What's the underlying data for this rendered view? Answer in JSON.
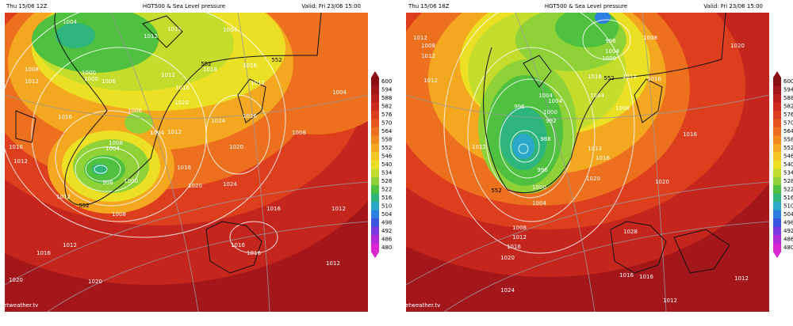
{
  "panels": [
    {
      "header": {
        "left": "Thu 15/06 12Z",
        "center": "HGT500 & Sea Level pressure",
        "right": "Valid: Fri 23/06 15:00"
      },
      "watermark": "© www.netweather.tv",
      "isobar_labels": [
        "1004",
        "1004",
        "1012",
        "1012",
        "1000",
        "1000",
        "1006",
        "1008",
        "1012",
        "1012",
        "1016",
        "1016",
        "1012",
        "1004",
        "1016",
        "1020",
        "1006",
        "1004",
        "1012",
        "1016",
        "1024",
        "1016",
        "1008",
        "1004",
        "1020",
        "1008",
        "1016",
        "1012",
        "998",
        "1000",
        "1016",
        "1020",
        "1024",
        "1012",
        "1008",
        "1016",
        "1012",
        "1016",
        "1012",
        "1016",
        "1020",
        "1020",
        "1012",
        "1016"
      ],
      "contour_labels": [
        "552",
        "552",
        "552"
      ]
    },
    {
      "header": {
        "left": "Thu 15/06 18Z",
        "center": "HGT500 & Sea Level pressure",
        "right": "Valid: Fri 23/06 15:00"
      },
      "watermark": "© www.netweather.tv",
      "isobar_labels": [
        "1008",
        "996",
        "1004",
        "1000",
        "1012",
        "1008",
        "1012",
        "1020",
        "1012",
        "1004",
        "1004",
        "1000",
        "996",
        "992",
        "988",
        "1004",
        "1008",
        "1012",
        "1016",
        "1016",
        "1012",
        "996",
        "1000",
        "1004",
        "1012",
        "1016",
        "1020",
        "1016",
        "1008",
        "1012",
        "1016",
        "1020",
        "1024",
        "1028",
        "1016",
        "1016",
        "1012",
        "1012",
        "1020"
      ],
      "contour_labels": [
        "552",
        "552"
      ]
    }
  ],
  "colorbar": {
    "ticks": [
      600,
      594,
      588,
      582,
      576,
      570,
      564,
      558,
      552,
      546,
      540,
      534,
      528,
      522,
      516,
      510,
      504,
      498,
      492,
      486,
      480
    ],
    "colors": [
      "#8a0f12",
      "#a3161a",
      "#b81e1c",
      "#cc2a1e",
      "#dd3e1d",
      "#e6561c",
      "#ec701d",
      "#f08a1d",
      "#f4a81f",
      "#f4c621",
      "#ece024",
      "#c4dd2c",
      "#8fd237",
      "#4fc03f",
      "#2eb57c",
      "#2aa8c8",
      "#2a7fe0",
      "#3a54e0",
      "#7a3ae0",
      "#b02ad8",
      "#d826d0"
    ]
  }
}
